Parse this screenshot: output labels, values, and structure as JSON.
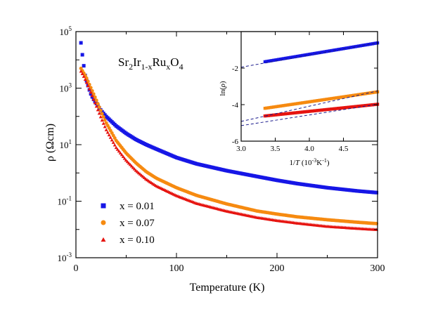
{
  "chart_data": [
    {
      "type": "scatter",
      "title": "",
      "annotation": {
        "base": [
          "Sr",
          "Ir",
          "Ru",
          "O"
        ],
        "subs": [
          "2",
          "1-x",
          "x",
          "4"
        ]
      },
      "xlabel": "Temperature (K)",
      "ylabel": "ρ (Ωcm)",
      "xlim": [
        0,
        300
      ],
      "ylim": [
        0.001,
        100000
      ],
      "yscale": "log",
      "xticks": [
        0,
        100,
        200,
        300
      ],
      "xtick_labels": [
        "0",
        "100",
        "200",
        "300"
      ],
      "yticks": [
        0.001,
        0.1,
        10,
        1000,
        100000
      ],
      "ytick_label_mantissa": "10",
      "ytick_label_exponents": [
        "-3",
        "-1",
        "1",
        "3",
        "5"
      ],
      "legend_position": "bottom-left",
      "grid": false,
      "series": [
        {
          "name": "x = 0.01",
          "color": "#1616e6",
          "marker": "square",
          "x": [
            5,
            7,
            9,
            11,
            13,
            15,
            17,
            20,
            25,
            30,
            40,
            50,
            60,
            70,
            80,
            100,
            120,
            150,
            180,
            200,
            220,
            250,
            280,
            300
          ],
          "y": [
            40000,
            10000,
            3000,
            1600,
            950,
            600,
            430,
            300,
            160,
            100,
            46,
            25,
            15,
            10,
            7,
            3.5,
            2.1,
            1.2,
            0.75,
            0.55,
            0.42,
            0.3,
            0.23,
            0.2
          ]
        },
        {
          "name": "x = 0.07",
          "color": "#f68a10",
          "marker": "circle",
          "x": [
            5,
            7,
            10,
            15,
            20,
            25,
            30,
            40,
            50,
            60,
            70,
            80,
            100,
            120,
            150,
            180,
            200,
            220,
            250,
            280,
            300
          ],
          "y": [
            5000,
            3800,
            2500,
            1000,
            400,
            150,
            60,
            14,
            5,
            2.2,
            1.1,
            0.65,
            0.3,
            0.16,
            0.08,
            0.045,
            0.035,
            0.028,
            0.022,
            0.018,
            0.016
          ]
        },
        {
          "name": "x = 0.10",
          "color": "#e61410",
          "marker": "triangle",
          "x": [
            5,
            7,
            10,
            15,
            20,
            25,
            30,
            40,
            50,
            60,
            70,
            80,
            100,
            120,
            150,
            180,
            200,
            220,
            250,
            280,
            300
          ],
          "y": [
            4000,
            3000,
            1800,
            700,
            250,
            90,
            35,
            8,
            2.8,
            1.2,
            0.6,
            0.35,
            0.16,
            0.085,
            0.045,
            0.027,
            0.021,
            0.017,
            0.013,
            0.011,
            0.01
          ]
        }
      ]
    },
    {
      "type": "scatter",
      "title": "",
      "xlabel_parts": [
        "1/",
        "T",
        " (10",
        "-3",
        "K",
        "-1",
        ")"
      ],
      "ylabel_parts": [
        "ln(",
        "ρ",
        ")"
      ],
      "xlim": [
        3.0,
        5.0
      ],
      "ylim": [
        -6,
        0
      ],
      "xticks": [
        3.0,
        3.5,
        4.0,
        4.5
      ],
      "xtick_labels": [
        "3.0",
        "3.5",
        "4.0",
        "4.5"
      ],
      "yticks": [
        -6,
        -4,
        -2
      ],
      "ytick_labels": [
        "-6",
        "-4",
        "-2"
      ],
      "grid": false,
      "series": [
        {
          "name": "x = 0.01",
          "color": "#1616e6",
          "x": [
            3.35,
            5.0
          ],
          "y": [
            -1.65,
            -0.62
          ]
        },
        {
          "name": "x = 0.07",
          "color": "#f68a10",
          "x": [
            3.35,
            5.0
          ],
          "y": [
            -4.2,
            -3.3
          ]
        },
        {
          "name": "x = 0.10",
          "color": "#e61410",
          "x": [
            3.35,
            5.0
          ],
          "y": [
            -4.62,
            -3.98
          ]
        }
      ],
      "fits": [
        {
          "color": "#1a1a8c",
          "x": [
            3.0,
            5.0
          ],
          "y": [
            -1.95,
            -0.62
          ]
        },
        {
          "color": "#1a1a8c",
          "x": [
            3.0,
            5.0
          ],
          "y": [
            -4.92,
            -3.25
          ]
        },
        {
          "color": "#1a1a8c",
          "x": [
            3.0,
            5.0
          ],
          "y": [
            -5.15,
            -3.98
          ]
        }
      ]
    }
  ]
}
